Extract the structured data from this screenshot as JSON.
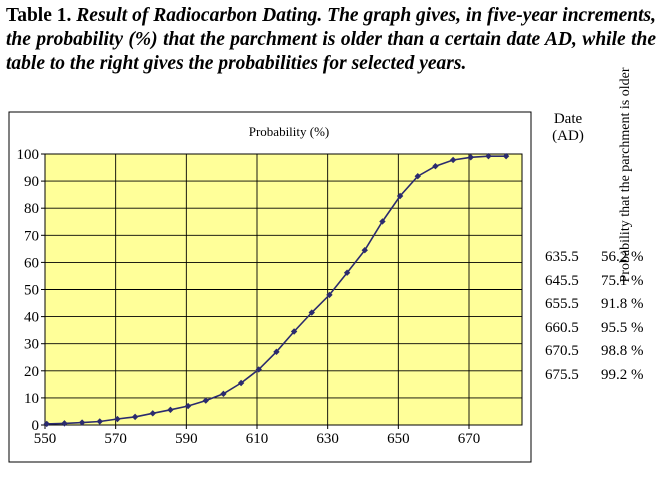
{
  "caption": {
    "lead": "Table 1.",
    "body": "Result of Radiocarbon Dating. The graph gives, in five-year increments, the probability (%) that the parchment is older than a certain date AD, while the table to the right gives the probabilities for selected years."
  },
  "chart_data": {
    "type": "line",
    "title": "Probability (%)",
    "xlabel": "",
    "ylabel": "",
    "xlim": [
      550,
      685
    ],
    "ylim": [
      0,
      100
    ],
    "x_ticks": [
      550,
      570,
      590,
      610,
      630,
      650,
      670
    ],
    "y_ticks": [
      0,
      10,
      20,
      30,
      40,
      50,
      60,
      70,
      80,
      90,
      100
    ],
    "grid": true,
    "series": [
      {
        "name": "Probability (%)",
        "x": [
          550.5,
          555.5,
          560.5,
          565.5,
          570.5,
          575.5,
          580.5,
          585.5,
          590.5,
          595.5,
          600.5,
          605.5,
          610.5,
          615.5,
          620.5,
          625.5,
          630.5,
          635.5,
          640.5,
          645.5,
          650.5,
          655.5,
          660.5,
          665.5,
          670.5,
          675.5,
          680.5
        ],
        "y": [
          0.4,
          0.6,
          0.9,
          1.3,
          2.2,
          3.0,
          4.3,
          5.6,
          7.0,
          9.0,
          11.5,
          15.5,
          20.5,
          27.0,
          34.5,
          41.5,
          48.0,
          56.2,
          64.5,
          75.1,
          84.5,
          91.8,
          95.5,
          97.8,
          98.8,
          99.2,
          99.2
        ]
      }
    ],
    "colors": {
      "plot_bg": "#FFFF99",
      "line": "#2B2B6E",
      "grid": "#000000"
    }
  },
  "table": {
    "header_date": "Date (AD)",
    "header_prob": "Probability that the parchment is older",
    "rows": [
      {
        "date": "635.5",
        "prob": "56.2 %"
      },
      {
        "date": "645.5",
        "prob": "75.1 %"
      },
      {
        "date": "655.5",
        "prob": "91.8 %"
      },
      {
        "date": "660.5",
        "prob": "95.5 %"
      },
      {
        "date": "670.5",
        "prob": "98.8 %"
      },
      {
        "date": "675.5",
        "prob": "99.2 %"
      }
    ]
  }
}
